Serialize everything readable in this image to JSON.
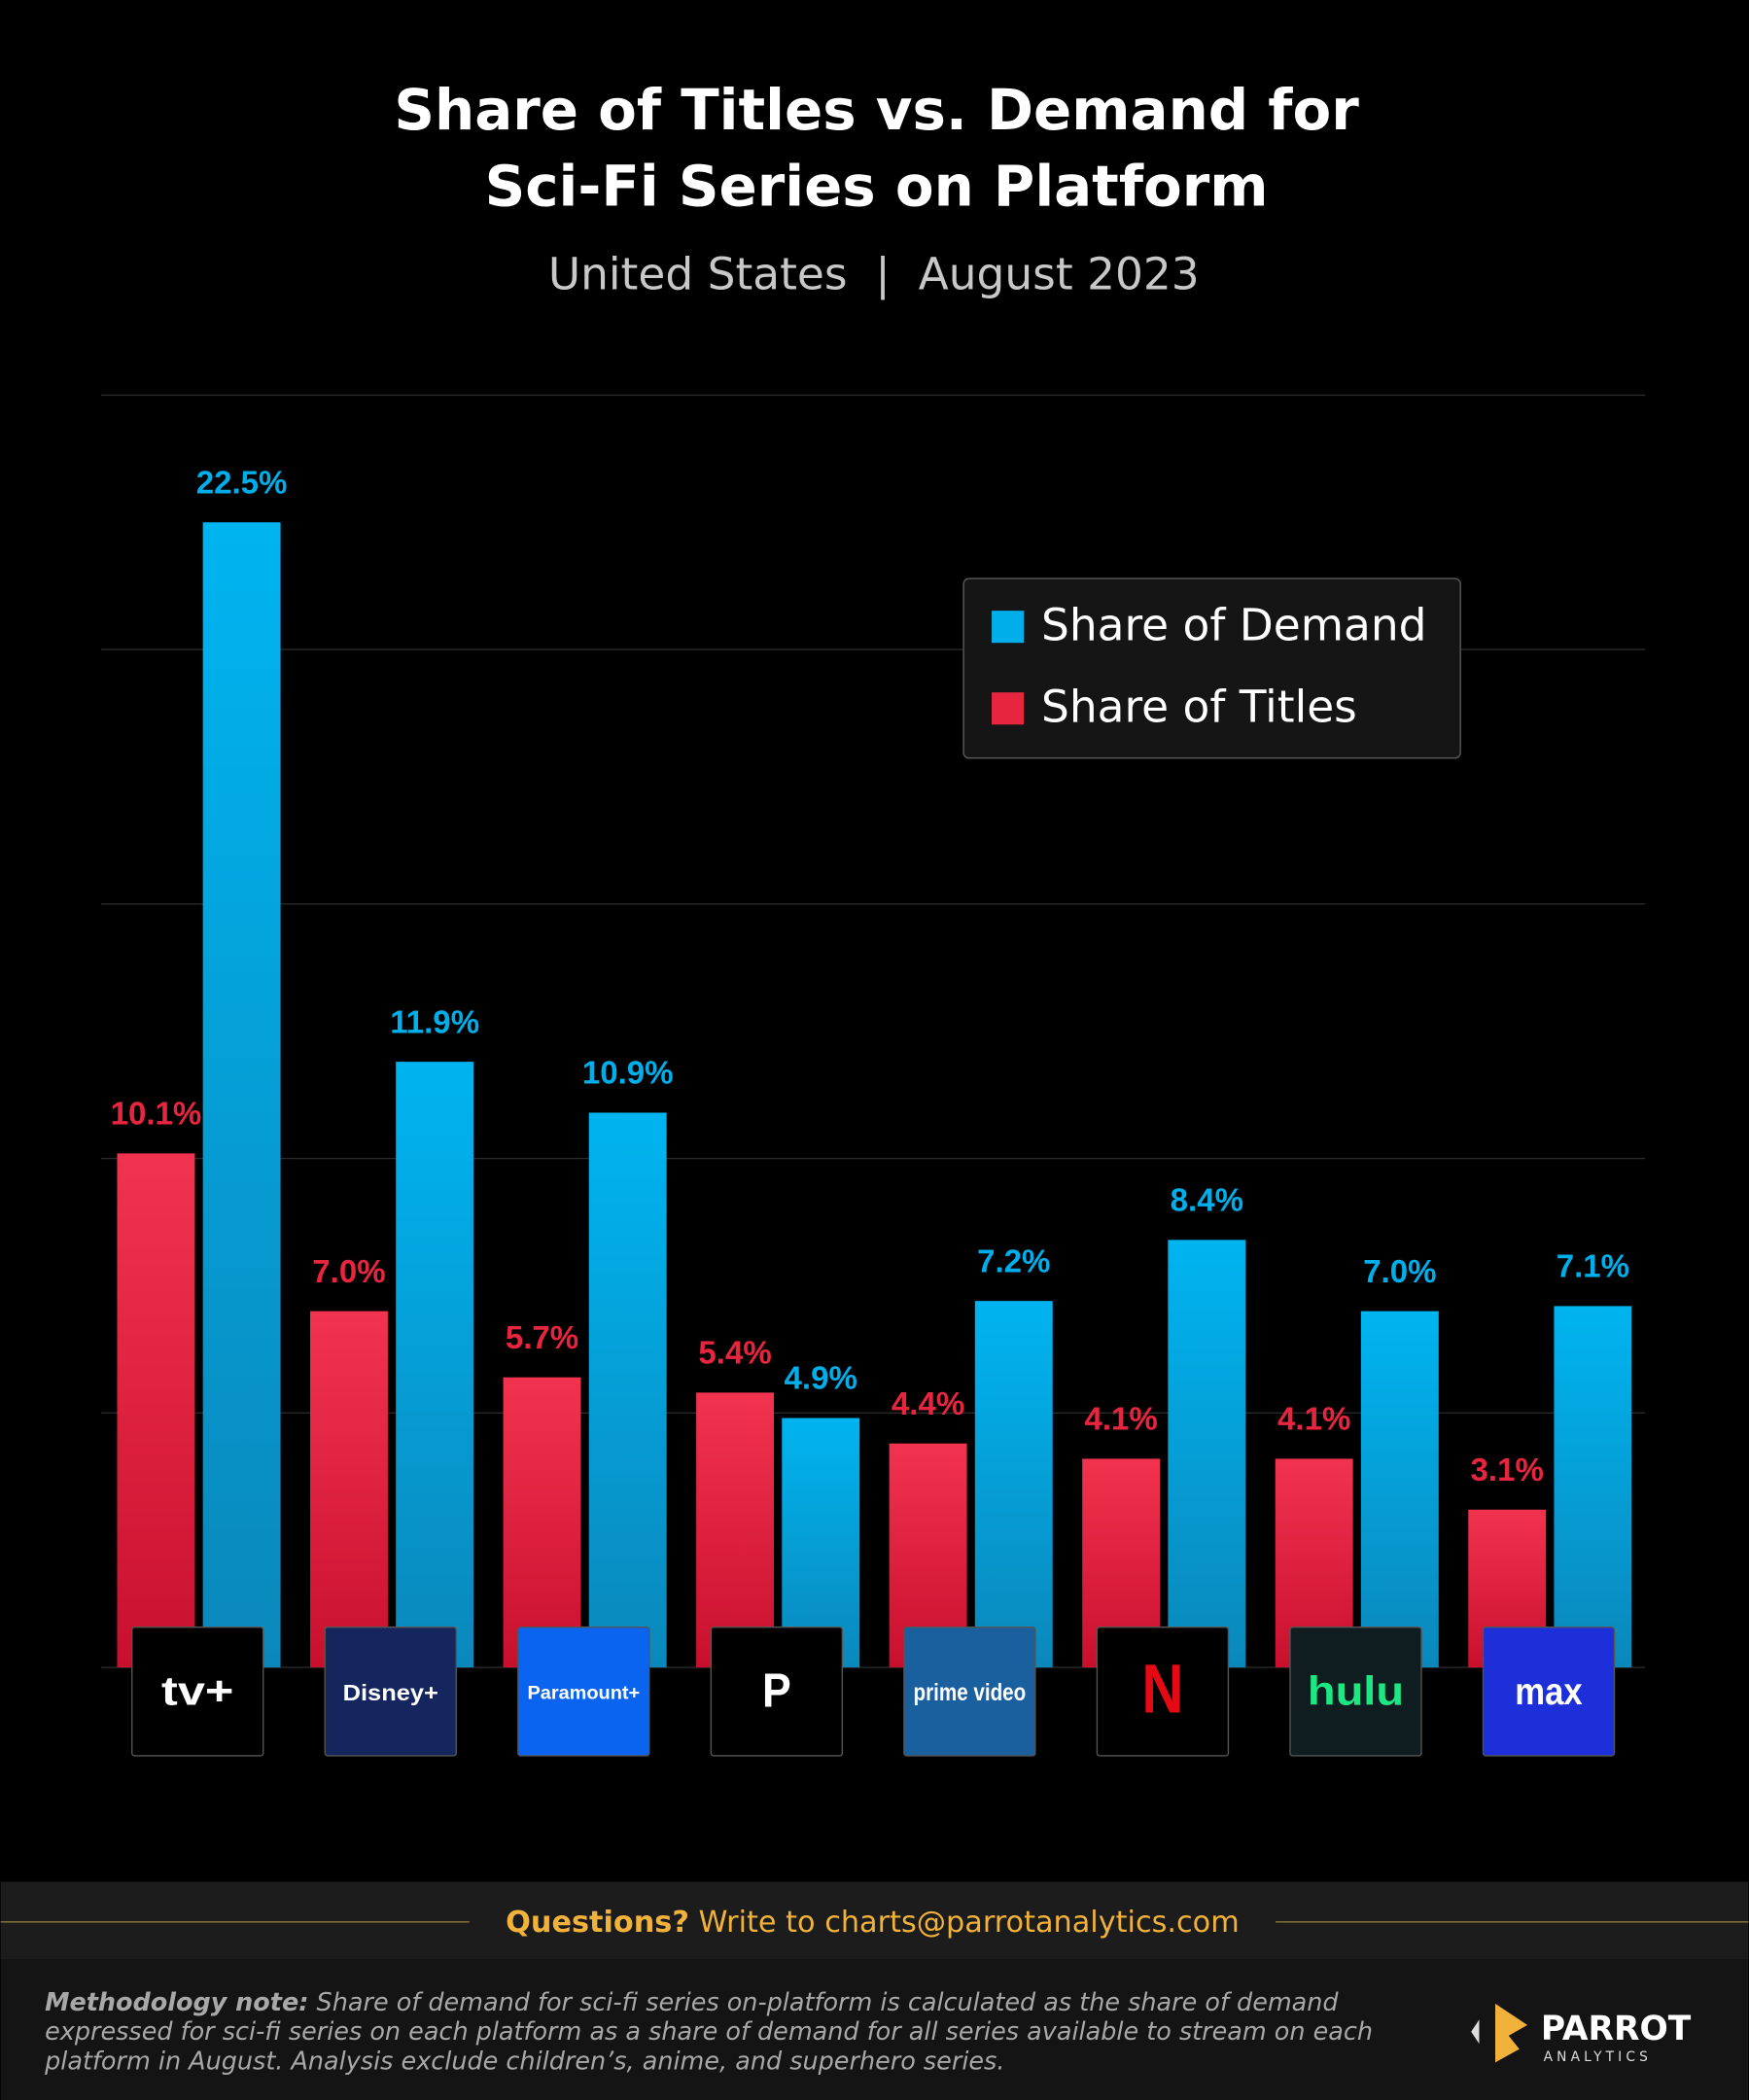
{
  "chart_data": {
    "type": "bar",
    "title": [
      "Share of Titles vs. Demand for",
      "Sci-Fi Series on Platform"
    ],
    "subtitle": "United States  |  August 2023",
    "categories": [
      "tv+",
      "Disney+",
      "Paramount+",
      "P",
      "prime video",
      "N",
      "hulu",
      "max"
    ],
    "series": [
      {
        "name": "Share of Titles",
        "color": "#e8253f",
        "values": [
          10.1,
          7.0,
          5.7,
          5.4,
          4.4,
          4.1,
          4.1,
          3.1
        ],
        "value_labels": [
          "10.1%",
          "7.0%",
          "5.7%",
          "5.4%",
          "4.4%",
          "4.1%",
          "4.1%",
          "3.1%"
        ]
      },
      {
        "name": "Share of Demand",
        "color": "#00aeea",
        "values": [
          22.5,
          11.9,
          10.9,
          4.9,
          7.2,
          8.4,
          7.0,
          7.1
        ],
        "value_labels": [
          "22.5%",
          "11.9%",
          "10.9%",
          "4.9%",
          "7.2%",
          "8.4%",
          "7.0%",
          "7.1%"
        ]
      }
    ],
    "ylim": [
      0,
      25
    ],
    "yticks": [
      0,
      5,
      10,
      15,
      20,
      25
    ],
    "grid": true,
    "legend": "upper right"
  },
  "footer": {
    "questions": "Questions?",
    "contact": "Write to charts@parrotanalytics.com",
    "note_label": "Methodology note:",
    "note_lines": [
      "Share of demand for sci-fi series on-platform is calculated as the share of demand",
      "expressed for sci-fi series on each platform as a share of demand for all series available to stream on each",
      "platform in August.  Analysis exclude children’s, anime, and superhero series."
    ],
    "brand": "PARROT",
    "brand_sub": "ANALYTICS"
  }
}
